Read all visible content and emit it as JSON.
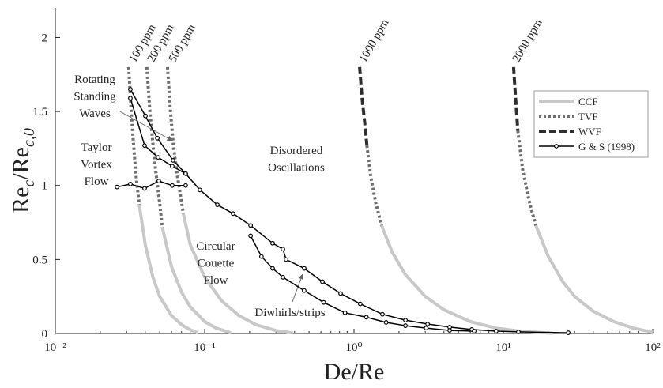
{
  "chart_data": {
    "type": "line",
    "xlabel": "De/Re",
    "ylabel": [
      "Re",
      "c",
      "/Re",
      "c,0"
    ],
    "xscale": "log",
    "xlim": [
      0.01,
      100
    ],
    "ylim": [
      0,
      2.2
    ],
    "xticks": [
      {
        "value": 0.01,
        "label": "10⁻²"
      },
      {
        "value": 0.1,
        "label": "10⁻¹"
      },
      {
        "value": 1,
        "label": "10⁰"
      },
      {
        "value": 10,
        "label": "10¹"
      },
      {
        "value": 100,
        "label": "10²"
      }
    ],
    "yticks": [
      0,
      0.5,
      1,
      1.5,
      2
    ],
    "legend": "upper right",
    "series": [
      {
        "name": "CCF",
        "color": "#c8c8c8",
        "style": "solid",
        "x": [
          0.0365,
          0.04,
          0.045,
          0.05,
          0.06,
          0.07,
          0.08,
          0.09,
          null,
          0.052,
          0.06,
          0.07,
          0.08,
          0.1,
          0.12,
          0.15,
          null,
          0.072,
          0.08,
          0.1,
          0.13,
          0.17,
          0.22,
          0.3,
          0.39,
          null,
          1.53,
          1.8,
          2.2,
          3,
          4,
          6,
          9,
          14,
          21.5,
          null,
          16.5,
          20,
          25,
          30,
          40,
          55,
          75,
          100
        ],
        "values": [
          0.87,
          0.6,
          0.38,
          0.25,
          0.12,
          0.06,
          0.025,
          0.005,
          null,
          0.72,
          0.45,
          0.28,
          0.18,
          0.08,
          0.035,
          0.005,
          null,
          0.81,
          0.6,
          0.38,
          0.22,
          0.12,
          0.06,
          0.02,
          0.003,
          null,
          0.73,
          0.55,
          0.4,
          0.25,
          0.16,
          0.08,
          0.035,
          0.012,
          0.002,
          null,
          0.73,
          0.52,
          0.35,
          0.25,
          0.15,
          0.08,
          0.035,
          0.008
        ]
      },
      {
        "name": "TVF",
        "color": "#6e6e6e",
        "style": "dotted",
        "x": [
          0.031,
          0.032,
          0.033,
          0.034,
          0.035,
          0.0365,
          null,
          0.041,
          0.043,
          0.045,
          0.047,
          0.05,
          0.052,
          null,
          0.0564,
          0.059,
          0.062,
          0.066,
          0.072,
          null,
          1.22,
          1.3,
          1.4,
          1.53,
          null,
          12.5,
          13.5,
          15,
          16.5
        ],
        "values": [
          1.8,
          1.55,
          1.35,
          1.18,
          1.03,
          0.87,
          null,
          1.8,
          1.5,
          1.28,
          1.1,
          0.88,
          0.72,
          null,
          1.8,
          1.5,
          1.25,
          1.05,
          0.81,
          null,
          1.27,
          1.05,
          0.88,
          0.73,
          null,
          1.37,
          1.1,
          0.88,
          0.73
        ]
      },
      {
        "name": "WVF",
        "color": "#2e2e2e",
        "style": "dashed",
        "x": [
          1.09,
          1.13,
          1.18,
          1.22,
          null,
          11.7,
          12.1,
          12.5
        ],
        "values": [
          1.8,
          1.6,
          1.42,
          1.27,
          null,
          1.8,
          1.58,
          1.37
        ]
      },
      {
        "name": "G & S (1998)",
        "color": "#000000",
        "style": "marker",
        "x": [
          0.0259,
          0.0318,
          0.0396,
          0.0493,
          0.0607,
          0.0746,
          null,
          0.0318,
          0.0401,
          0.0482,
          0.0614,
          0.0746,
          0.0929,
          0.1215,
          0.155,
          0.203,
          0.285,
          0.334,
          0.351,
          0.464,
          0.614,
          0.813,
          1.1,
          1.55,
          2.21,
          3.11,
          4.37,
          6.14,
          8.95,
          12.6,
          27.2,
          null,
          0.0318,
          0.0396,
          0.0488,
          0.0607,
          0.0746,
          null,
          0.203,
          0.24,
          0.285,
          0.334,
          0.464,
          0.627,
          0.87,
          1.21,
          1.64,
          2.21,
          3.04,
          4.37,
          6.38
        ],
        "values": [
          0.99,
          1.01,
          0.98,
          1.03,
          1.0,
          1.0,
          null,
          1.65,
          1.47,
          1.32,
          1.17,
          1.08,
          0.97,
          0.87,
          0.81,
          0.73,
          0.61,
          0.57,
          0.5,
          0.44,
          0.35,
          0.27,
          0.2,
          0.13,
          0.09,
          0.064,
          0.043,
          0.027,
          0.016,
          0.011,
          0.005,
          null,
          1.59,
          1.27,
          1.19,
          1.13,
          1.08,
          null,
          0.66,
          0.52,
          0.44,
          0.38,
          0.29,
          0.21,
          0.14,
          0.11,
          0.075,
          0.053,
          0.037,
          0.021,
          0.016
        ]
      }
    ],
    "curve_labels": [
      "100 ppm",
      "200 ppm",
      "500 ppm",
      "1000 ppm",
      "2000 ppm"
    ],
    "annotations": [
      {
        "lines": [
          "Rotating",
          "Standing",
          "Waves"
        ]
      },
      {
        "lines": [
          "Taylor",
          "Vortex",
          "Flow"
        ]
      },
      {
        "lines": [
          "Disordered",
          "Oscillations"
        ]
      },
      {
        "lines": [
          "Circular",
          "Couette",
          "Flow"
        ]
      },
      {
        "lines": [
          "Diwhirls/strips"
        ]
      }
    ]
  }
}
